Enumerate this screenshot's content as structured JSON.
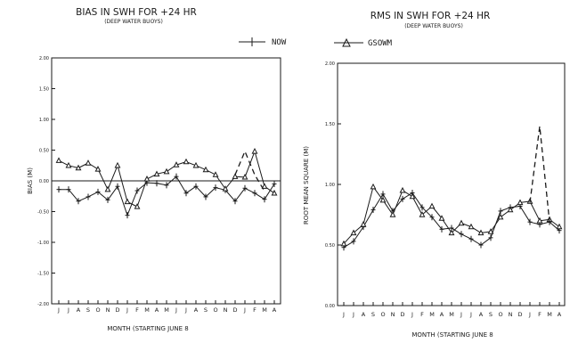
{
  "legend": [
    {
      "label": "NOW",
      "marker": "plus",
      "dash": false
    },
    {
      "label": "GSOWM",
      "marker": "triangle",
      "dash": false
    }
  ],
  "chart_data": [
    {
      "type": "line",
      "title": "BIAS IN SWH FOR +24 HR",
      "subtitle": "(DEEP WATER BUOYS)",
      "xlabel": "MONTH (STARTING JUNE 8",
      "ylabel": "BIAS (M)",
      "categories": [
        "J",
        "J",
        "A",
        "S",
        "O",
        "N",
        "D",
        "J",
        "F",
        "M",
        "A",
        "M",
        "J",
        "J",
        "A",
        "S",
        "O",
        "N",
        "D",
        "J",
        "F",
        "M",
        "A"
      ],
      "ylim": [
        -2.0,
        2.0
      ],
      "yticks": [
        {
          "v": 2.0,
          "label": "2.00"
        },
        {
          "v": 1.5,
          "label": "1.50"
        },
        {
          "v": 1.0,
          "label": "1.00"
        },
        {
          "v": 0.5,
          "label": "0.50"
        },
        {
          "v": 0.0,
          "label": "0.00"
        },
        {
          "v": -0.5,
          "label": "-0.50"
        },
        {
          "v": -1.0,
          "label": "-1.00"
        },
        {
          "v": -1.5,
          "label": "-1.50"
        },
        {
          "v": -2.0,
          "label": "-2.00"
        }
      ],
      "zero_line": true,
      "series": [
        {
          "name": "NOW",
          "marker": "plus",
          "dash": false,
          "values": [
            -0.14,
            -0.14,
            -0.33,
            -0.26,
            -0.18,
            -0.31,
            -0.09,
            -0.56,
            -0.16,
            -0.03,
            -0.04,
            -0.07,
            0.07,
            -0.2,
            -0.09,
            -0.26,
            -0.11,
            -0.15,
            -0.33,
            -0.12,
            -0.2,
            -0.3,
            -0.05
          ]
        },
        {
          "name": "GSOWM",
          "marker": "triangle",
          "dash": false,
          "values": [
            0.33,
            0.25,
            0.21,
            0.29,
            0.19,
            -0.14,
            0.25,
            -0.34,
            -0.42,
            0.03,
            0.11,
            0.15,
            0.26,
            0.31,
            0.25,
            0.18,
            0.1,
            -0.13,
            0.07,
            0.06,
            0.48,
            -0.09,
            -0.2
          ]
        },
        {
          "name": "",
          "marker": "none",
          "dash": true,
          "x": [
            18,
            19,
            20,
            21
          ],
          "values": [
            0.1,
            0.48,
            0.1,
            -0.17
          ]
        }
      ]
    },
    {
      "type": "line",
      "title": "RMS IN SWH FOR +24 HR",
      "subtitle": "(DEEP WATER BUOYS)",
      "xlabel": "MONTH (STARTING JUNE 8",
      "ylabel": "ROOT MEAN SQUARE (M)",
      "categories": [
        "J",
        "J",
        "A",
        "S",
        "O",
        "N",
        "D",
        "J",
        "F",
        "M",
        "A",
        "M",
        "J",
        "J",
        "A",
        "S",
        "O",
        "N",
        "D",
        "J",
        "F",
        "M",
        "A"
      ],
      "ylim": [
        0.0,
        2.0
      ],
      "yticks": [
        {
          "v": 2.0,
          "label": "2.00"
        },
        {
          "v": 1.5,
          "label": "1.50"
        },
        {
          "v": 1.0,
          "label": "1.00"
        },
        {
          "v": 0.5,
          "label": "0.50"
        },
        {
          "v": 0.0,
          "label": "0.00"
        }
      ],
      "zero_line": false,
      "series": [
        {
          "name": "NOW",
          "marker": "plus",
          "dash": false,
          "values": [
            0.48,
            0.53,
            0.65,
            0.79,
            0.92,
            0.78,
            0.88,
            0.93,
            0.81,
            0.73,
            0.63,
            0.64,
            0.59,
            0.55,
            0.5,
            0.56,
            0.78,
            0.81,
            0.82,
            0.69,
            0.67,
            0.69,
            0.62
          ]
        },
        {
          "name": "GSOWM",
          "marker": "triangle",
          "dash": false,
          "values": [
            0.51,
            0.6,
            0.67,
            0.98,
            0.87,
            0.75,
            0.95,
            0.9,
            0.75,
            0.82,
            0.72,
            0.6,
            0.68,
            0.65,
            0.6,
            0.61,
            0.73,
            0.79,
            0.85,
            0.86,
            0.7,
            0.71,
            0.65
          ]
        },
        {
          "name": "",
          "marker": "none",
          "dash": true,
          "x": [
            19,
            20,
            21
          ],
          "values": [
            0.85,
            1.48,
            0.69
          ]
        }
      ]
    }
  ]
}
